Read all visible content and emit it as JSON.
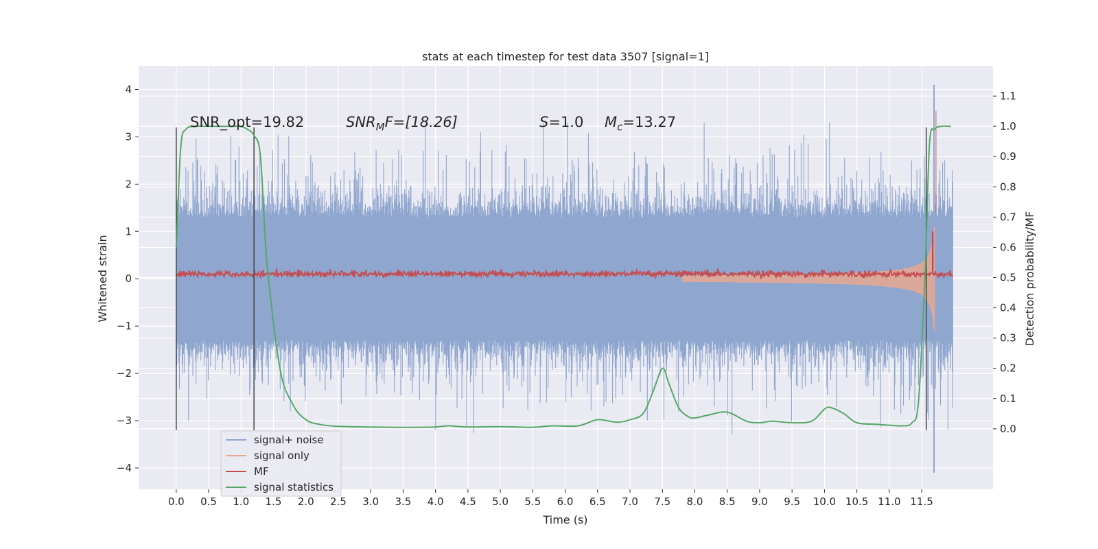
{
  "chart_data": {
    "type": "line",
    "title": "stats at each timestep for test data 3507 [signal=1]",
    "xlabel": "Time (s)",
    "ylabel_left": "Whitened strain",
    "ylabel_right": "Detection probability/MF",
    "xlim": [
      -0.58,
      12.6
    ],
    "ylim_left": [
      -4.45,
      4.5
    ],
    "ylim_right": [
      -0.2,
      1.2
    ],
    "x_ticks": [
      "0.0",
      "0.5",
      "1.0",
      "1.5",
      "2.0",
      "2.5",
      "3.0",
      "3.5",
      "4.0",
      "4.5",
      "5.0",
      "5.5",
      "6.0",
      "6.5",
      "7.0",
      "7.5",
      "8.0",
      "8.5",
      "9.0",
      "9.5",
      "10.0",
      "10.5",
      "11.0",
      "11.5"
    ],
    "y_ticks_left": [
      "4",
      "3",
      "2",
      "1",
      "0",
      "−1",
      "−2",
      "−3",
      "−4"
    ],
    "y_ticks_right": [
      "1.1",
      "1.0",
      "0.9",
      "0.8",
      "0.7",
      "0.6",
      "0.5",
      "0.4",
      "0.3",
      "0.2",
      "0.1",
      "0.0"
    ],
    "grid": true,
    "legend_position": "lower-left",
    "annotations": {
      "snr_opt": "SNR_opt=19.82",
      "snr_mf_name": "SNR",
      "snr_mf_sub": "M",
      "snr_mf_rest": "F=[18.26]",
      "s_name": "S",
      "s_rest": "=1.0",
      "mc_name": "M",
      "mc_sub": "c",
      "mc_rest": "=13.27"
    },
    "vlines": [
      {
        "x": 0.0,
        "y": [
          -3.2,
          3.2
        ]
      },
      {
        "x": 1.2,
        "y": [
          -3.2,
          3.2
        ]
      },
      {
        "x": 11.57,
        "y": [
          -3.2,
          3.2
        ]
      }
    ],
    "series": [
      {
        "name": "signal+ noise",
        "color": "#8fa6cf",
        "kind": "noise",
        "x_range": [
          0.0,
          11.98
        ],
        "envelope": 1.3,
        "spike_max": 3.3,
        "final_spike": 4.1
      },
      {
        "name": "signal only",
        "color": "#e8a890",
        "kind": "chirp",
        "x_range": [
          7.8,
          11.7
        ],
        "amplitude_end": 3.5
      },
      {
        "name": "MF",
        "color": "#c44e52",
        "kind": "mf",
        "x_range": [
          0.0,
          11.98
        ],
        "baseline": 0.1,
        "peak_x": 11.67,
        "peak": 1.0
      },
      {
        "name": "signal statistics",
        "color": "#55a868",
        "kind": "line",
        "x": [
          0.0,
          0.07,
          0.15,
          0.3,
          0.6,
          0.9,
          1.0,
          1.1,
          1.2,
          1.3,
          1.4,
          1.6,
          1.8,
          2.0,
          2.2,
          2.5,
          3.0,
          3.5,
          4.0,
          4.2,
          4.5,
          5.0,
          5.5,
          5.8,
          6.2,
          6.5,
          6.8,
          7.0,
          7.2,
          7.35,
          7.5,
          7.6,
          7.75,
          7.9,
          8.0,
          8.2,
          8.5,
          8.8,
          9.0,
          9.2,
          9.5,
          9.8,
          10.0,
          10.1,
          10.3,
          10.5,
          10.8,
          11.0,
          11.2,
          11.35,
          11.45,
          11.55,
          11.62,
          11.7,
          11.8,
          11.95
        ],
        "y": [
          0.6,
          0.93,
          0.99,
          1.0,
          1.0,
          1.0,
          1.0,
          0.99,
          0.97,
          0.9,
          0.55,
          0.2,
          0.08,
          0.03,
          0.015,
          0.008,
          0.006,
          0.005,
          0.006,
          0.01,
          0.006,
          0.007,
          0.005,
          0.01,
          0.01,
          0.03,
          0.022,
          0.03,
          0.05,
          0.12,
          0.2,
          0.15,
          0.07,
          0.04,
          0.036,
          0.045,
          0.055,
          0.025,
          0.02,
          0.025,
          0.02,
          0.025,
          0.065,
          0.07,
          0.05,
          0.02,
          0.015,
          0.012,
          0.01,
          0.02,
          0.09,
          0.5,
          0.94,
          0.99,
          1.0,
          1.0
        ]
      }
    ]
  }
}
